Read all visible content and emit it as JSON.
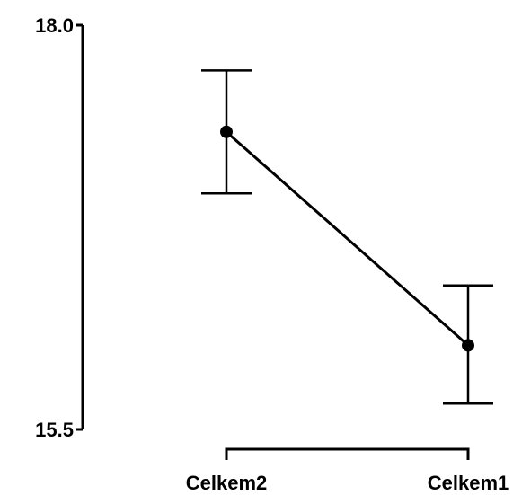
{
  "chart_data": {
    "type": "line",
    "categories": [
      "Celkem2",
      "Celkem1"
    ],
    "series": [
      {
        "values": [
          17.34,
          16.02
        ],
        "error_low": [
          16.96,
          15.66
        ],
        "error_high": [
          17.72,
          16.39
        ],
        "color": "#000000"
      }
    ],
    "ylim": [
      15.5,
      18.0
    ],
    "y_ticks": [
      "18.0",
      "15.5"
    ],
    "xlabel": "",
    "ylabel": "",
    "grid": false
  }
}
